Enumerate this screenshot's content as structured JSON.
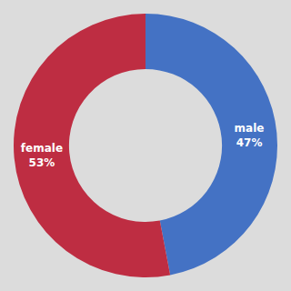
{
  "chart_data": {
    "type": "pie",
    "categories": [
      "male",
      "female"
    ],
    "values": [
      47,
      53
    ],
    "colors": [
      "#4472C4",
      "#BE2D42"
    ],
    "data_labels": true,
    "value_labels": [
      "male\n47%",
      "female\n53%"
    ]
  }
}
